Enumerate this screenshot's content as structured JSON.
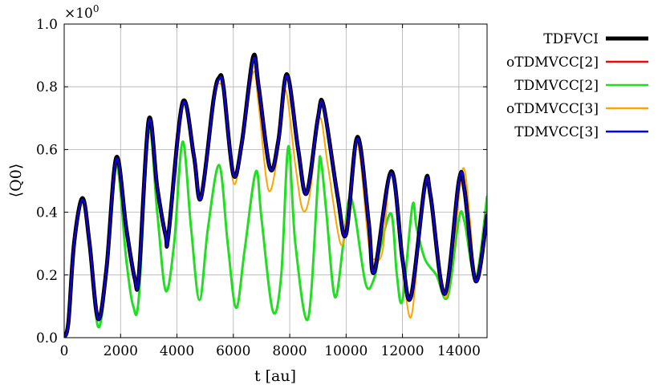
{
  "chart_data": {
    "type": "line",
    "title": "",
    "xlabel": "t [au]",
    "ylabel": "⟨Q0⟩",
    "y_multiplier": "×10^0",
    "xlim": [
      0,
      15000
    ],
    "ylim": [
      0.0,
      1.0
    ],
    "xticks": [
      0,
      2000,
      4000,
      6000,
      8000,
      10000,
      12000,
      14000
    ],
    "xtick_labels": [
      "0",
      "2000",
      "4000",
      "6000",
      "8000",
      "10000",
      "12000",
      "14000"
    ],
    "yticks": [
      0.0,
      0.2,
      0.4,
      0.6,
      0.8,
      1.0
    ],
    "ytick_labels": [
      "0.0",
      "0.2",
      "0.4",
      "0.6",
      "0.8",
      "1.0"
    ],
    "grid": true,
    "legend_position": "outside-right",
    "series": [
      {
        "name": "TDFVCI",
        "color": "#000000",
        "x": [
          0,
          150,
          350,
          650,
          900,
          1200,
          1500,
          1850,
          2200,
          2500,
          2650,
          3000,
          3300,
          3600,
          3700,
          4200,
          4600,
          4850,
          5300,
          5500,
          5650,
          6000,
          6300,
          6700,
          6900,
          7300,
          7600,
          7900,
          8300,
          8600,
          9000,
          9200,
          9700,
          10000,
          10400,
          10800,
          11000,
          11600,
          12000,
          12300,
          12800,
          13000,
          13500,
          14000,
          14200,
          14600,
          15000
        ],
        "y": [
          0.0,
          0.05,
          0.3,
          0.445,
          0.3,
          0.06,
          0.22,
          0.575,
          0.35,
          0.19,
          0.2,
          0.695,
          0.48,
          0.325,
          0.33,
          0.75,
          0.58,
          0.445,
          0.76,
          0.83,
          0.8,
          0.52,
          0.62,
          0.895,
          0.8,
          0.54,
          0.63,
          0.84,
          0.6,
          0.46,
          0.7,
          0.74,
          0.45,
          0.33,
          0.64,
          0.37,
          0.21,
          0.53,
          0.25,
          0.13,
          0.49,
          0.45,
          0.14,
          0.5,
          0.47,
          0.18,
          0.39
        ]
      },
      {
        "name": "oTDMVCC[2]",
        "color": "#ff0000",
        "x": [
          0,
          150,
          350,
          650,
          900,
          1200,
          1500,
          1850,
          2200,
          2500,
          2650,
          3000,
          3300,
          3600,
          3700,
          4200,
          4600,
          4850,
          5300,
          5500,
          5650,
          6000,
          6300,
          6700,
          6900,
          7300,
          7600,
          7900,
          8300,
          8600,
          9000,
          9200,
          9700,
          10000,
          10400,
          10800,
          11000,
          11600,
          12000,
          12300,
          12800,
          13000,
          13500,
          14000,
          14200,
          14600,
          15000
        ],
        "y": [
          0.0,
          0.05,
          0.3,
          0.44,
          0.3,
          0.06,
          0.22,
          0.57,
          0.35,
          0.19,
          0.2,
          0.69,
          0.48,
          0.325,
          0.33,
          0.745,
          0.58,
          0.445,
          0.755,
          0.825,
          0.795,
          0.52,
          0.62,
          0.885,
          0.8,
          0.54,
          0.63,
          0.835,
          0.6,
          0.46,
          0.7,
          0.735,
          0.45,
          0.33,
          0.635,
          0.37,
          0.21,
          0.525,
          0.25,
          0.13,
          0.485,
          0.45,
          0.14,
          0.5,
          0.47,
          0.18,
          0.39
        ]
      },
      {
        "name": "TDMVCC[2]",
        "color": "#22dd22",
        "x": [
          0,
          150,
          350,
          650,
          900,
          1200,
          1500,
          1850,
          2200,
          2450,
          2650,
          3000,
          3300,
          3600,
          3900,
          4200,
          4500,
          4800,
          5100,
          5500,
          5800,
          6100,
          6400,
          6800,
          7000,
          7400,
          7700,
          7950,
          8200,
          8650,
          9000,
          9100,
          9300,
          9600,
          9900,
          10100,
          10300,
          10700,
          11000,
          11200,
          11600,
          11800,
          12000,
          12350,
          12500,
          12800,
          13200,
          13600,
          14000,
          14200,
          14600,
          15000
        ],
        "y": [
          0.0,
          0.05,
          0.3,
          0.44,
          0.3,
          0.035,
          0.2,
          0.55,
          0.25,
          0.1,
          0.13,
          0.66,
          0.4,
          0.15,
          0.3,
          0.625,
          0.35,
          0.12,
          0.35,
          0.55,
          0.3,
          0.095,
          0.28,
          0.53,
          0.38,
          0.085,
          0.2,
          0.61,
          0.3,
          0.06,
          0.5,
          0.57,
          0.4,
          0.13,
          0.3,
          0.44,
          0.4,
          0.17,
          0.19,
          0.28,
          0.395,
          0.2,
          0.12,
          0.42,
          0.35,
          0.25,
          0.2,
          0.13,
          0.38,
          0.37,
          0.19,
          0.45
        ]
      },
      {
        "name": "oTDMVCC[3]",
        "color": "#ffa500",
        "x": [
          0,
          150,
          350,
          650,
          900,
          1200,
          1500,
          1850,
          2200,
          2500,
          2650,
          3000,
          3300,
          3600,
          3700,
          4200,
          4600,
          4850,
          5300,
          5500,
          5700,
          6000,
          6300,
          6700,
          6900,
          7250,
          7600,
          7850,
          8200,
          8450,
          8700,
          9050,
          9350,
          9800,
          10050,
          10400,
          10800,
          11000,
          11300,
          11600,
          12000,
          12300,
          12600,
          12850,
          13100,
          13500,
          13800,
          14150,
          14400,
          14600,
          15000
        ],
        "y": [
          0.0,
          0.05,
          0.3,
          0.44,
          0.3,
          0.06,
          0.22,
          0.57,
          0.35,
          0.19,
          0.2,
          0.69,
          0.48,
          0.325,
          0.33,
          0.745,
          0.58,
          0.445,
          0.755,
          0.81,
          0.76,
          0.495,
          0.6,
          0.845,
          0.74,
          0.47,
          0.6,
          0.79,
          0.55,
          0.41,
          0.45,
          0.7,
          0.55,
          0.3,
          0.4,
          0.62,
          0.3,
          0.25,
          0.28,
          0.535,
          0.23,
          0.065,
          0.32,
          0.49,
          0.4,
          0.13,
          0.28,
          0.54,
          0.37,
          0.18,
          0.38
        ]
      },
      {
        "name": "TDMVCC[3]",
        "color": "#0000ff",
        "x": [
          0,
          150,
          350,
          650,
          900,
          1200,
          1500,
          1850,
          2200,
          2500,
          2650,
          3000,
          3300,
          3600,
          3700,
          4200,
          4600,
          4850,
          5300,
          5500,
          5650,
          6000,
          6300,
          6700,
          6900,
          7300,
          7600,
          7900,
          8300,
          8600,
          9000,
          9200,
          9700,
          10000,
          10400,
          10800,
          11000,
          11600,
          12000,
          12300,
          12800,
          13000,
          13500,
          14000,
          14200,
          14600,
          15000
        ],
        "y": [
          0.0,
          0.05,
          0.3,
          0.44,
          0.3,
          0.06,
          0.22,
          0.57,
          0.35,
          0.19,
          0.2,
          0.69,
          0.48,
          0.325,
          0.33,
          0.745,
          0.58,
          0.445,
          0.755,
          0.825,
          0.795,
          0.52,
          0.62,
          0.885,
          0.8,
          0.54,
          0.63,
          0.835,
          0.6,
          0.46,
          0.7,
          0.735,
          0.45,
          0.33,
          0.635,
          0.37,
          0.21,
          0.525,
          0.25,
          0.13,
          0.485,
          0.45,
          0.14,
          0.5,
          0.47,
          0.18,
          0.39
        ]
      }
    ]
  }
}
